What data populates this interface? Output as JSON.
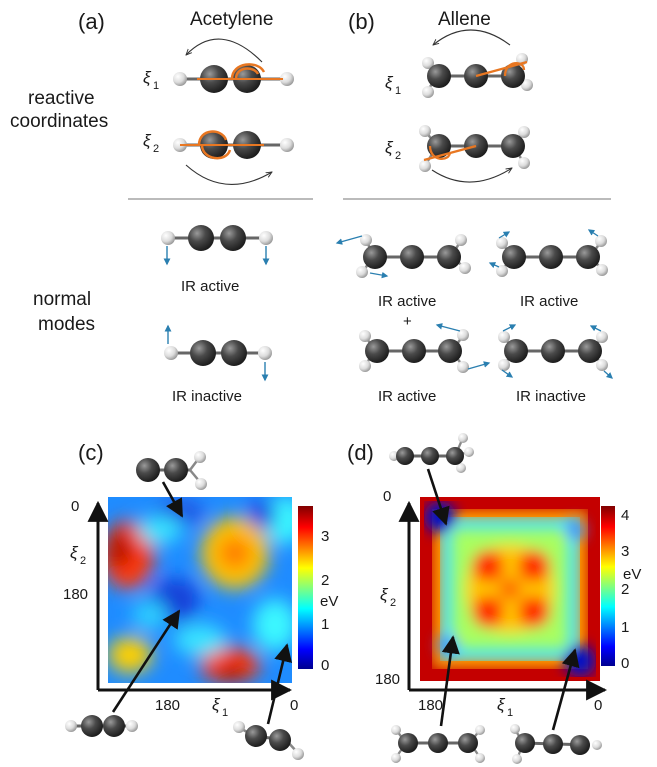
{
  "panels": {
    "a": {
      "label": "(a)",
      "title": "Acetylene"
    },
    "b": {
      "label": "(b)",
      "title": "Allene"
    },
    "c": {
      "label": "(c)"
    },
    "d": {
      "label": "(d)"
    }
  },
  "rows": {
    "reactive_line1": "reactive",
    "reactive_line2": "coordinates",
    "normal_line1": "normal",
    "normal_line2": "modes"
  },
  "coords": {
    "xi": "ξ",
    "one": "1",
    "two": "2"
  },
  "modes": {
    "acetylene_active": "IR active",
    "acetylene_inactive": "IR inactive",
    "allene_1": "IR active",
    "allene_plus": "+",
    "allene_2": "IR active",
    "allene_3": "IR active",
    "allene_4": "IR inactive"
  },
  "plot_c": {
    "y_top_tick": "0",
    "y_mid_tick": "180",
    "x_mid_tick": "180",
    "x_end_tick": "0",
    "colorbar_ticks": [
      "3",
      "2",
      "1",
      "0"
    ],
    "colorbar_unit": "eV"
  },
  "plot_d": {
    "y_top_tick": "0",
    "y_mid_tick": "180",
    "x_mid_tick": "180",
    "x_end_tick": "0",
    "colorbar_ticks": [
      "4",
      "3",
      "2",
      "1",
      "0"
    ],
    "colorbar_unit": "eV"
  },
  "colors": {
    "carbon": "#3a3a3a",
    "hydrogen": "#e6e6e6",
    "orange": "#e87722",
    "vector": "#2a7fb0"
  }
}
